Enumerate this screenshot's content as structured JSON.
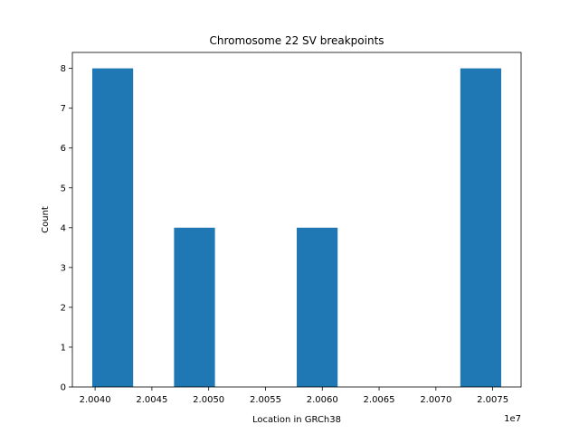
{
  "chart_data": {
    "type": "bar",
    "title": "Chromosome 22 SV breakpoints",
    "xlabel": "Location in GRCh38",
    "ylabel": "Count",
    "x_offset_label": "1e7",
    "bins": [
      {
        "start": 2.003975,
        "end": 2.004335,
        "count": 8
      },
      {
        "start": 2.004335,
        "end": 2.004695,
        "count": 0
      },
      {
        "start": 2.004695,
        "end": 2.005055,
        "count": 4
      },
      {
        "start": 2.005055,
        "end": 2.005415,
        "count": 0
      },
      {
        "start": 2.005415,
        "end": 2.005775,
        "count": 0
      },
      {
        "start": 2.005775,
        "end": 2.006135,
        "count": 4
      },
      {
        "start": 2.006135,
        "end": 2.006495,
        "count": 0
      },
      {
        "start": 2.006495,
        "end": 2.006855,
        "count": 0
      },
      {
        "start": 2.006855,
        "end": 2.007215,
        "count": 0
      },
      {
        "start": 2.007215,
        "end": 2.007575,
        "count": 8
      }
    ],
    "xticks": [
      "2.0040",
      "2.0045",
      "2.0050",
      "2.0055",
      "2.0060",
      "2.0065",
      "2.0070",
      "2.0075"
    ],
    "yticks": [
      "0",
      "1",
      "2",
      "3",
      "4",
      "5",
      "6",
      "7",
      "8"
    ],
    "xlim": [
      2.0038,
      2.00775
    ],
    "ylim": [
      0,
      8.4
    ],
    "bar_color": "#1f77b4",
    "grid": false,
    "legend": "none"
  }
}
